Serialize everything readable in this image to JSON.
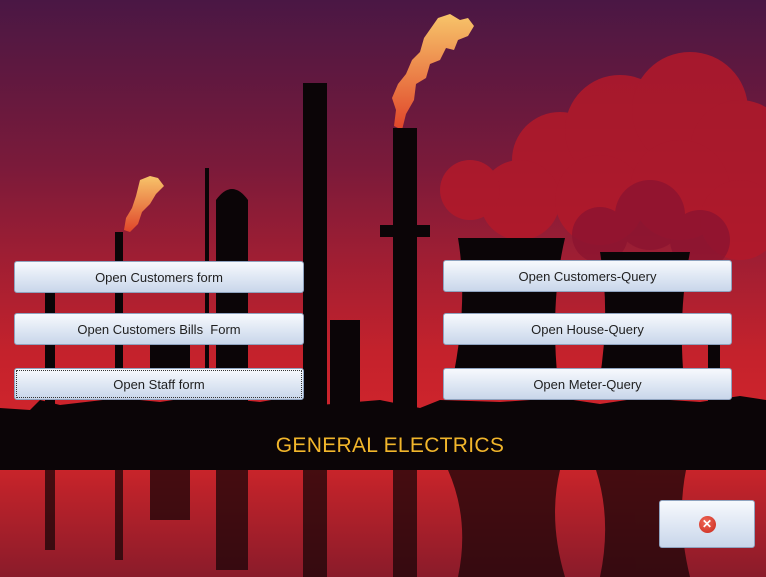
{
  "form": {
    "title": "GENERAL ELECTRICS",
    "buttons": {
      "customers_form": "Open Customers form",
      "customers_bills_form": "Open Customers Bills  Form",
      "staff_form": "Open Staff form",
      "customers_query": "Open Customers-Query",
      "house_query": "Open House-Query",
      "meter_query": "Open Meter-Query"
    },
    "close_icon": "close-icon"
  },
  "colors": {
    "title": "#f2b62b",
    "sky_top": "#4a1744",
    "sky_bottom": "#d8262b",
    "silhouette": "#0b0507",
    "flame": "#f5b65a"
  }
}
